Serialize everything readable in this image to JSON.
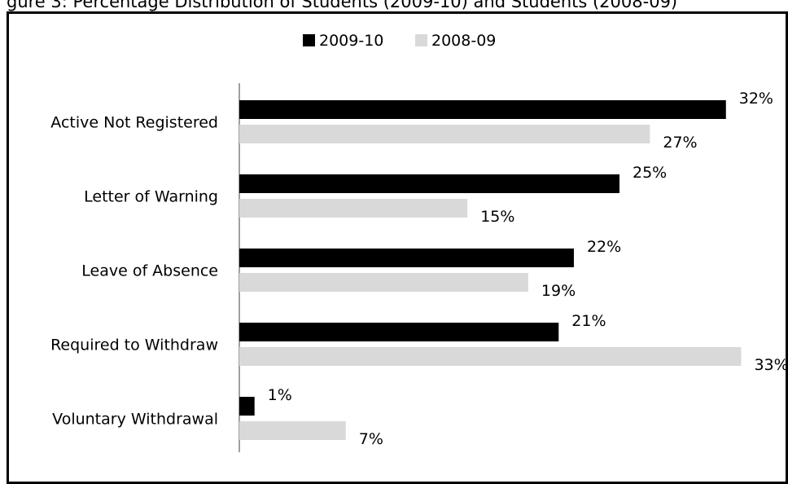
{
  "figure_caption": "gure 3: Percentage Distribution of Students (2009-10) and Students (2008-09)",
  "chart_data": {
    "type": "bar",
    "orientation": "horizontal",
    "categories": [
      "Active Not Registered",
      "Letter of Warning",
      "Leave of Absence",
      "Required to Withdraw",
      "Voluntary Withdrawal"
    ],
    "series": [
      {
        "name": "2009-10",
        "color": "#000000",
        "values": [
          32,
          25,
          22,
          21,
          1
        ],
        "labels": [
          "32%",
          "25%",
          "22%",
          "21%",
          "1%"
        ]
      },
      {
        "name": "2008-09",
        "color": "#d9d9d9",
        "values": [
          27,
          15,
          19,
          33,
          7
        ],
        "labels": [
          "27%",
          "15%",
          "19%",
          "33%",
          "7%"
        ]
      }
    ],
    "xlim": [
      0,
      33
    ],
    "value_suffix": "%",
    "legend_position": "top-center",
    "grid": false,
    "axis_line": true
  }
}
